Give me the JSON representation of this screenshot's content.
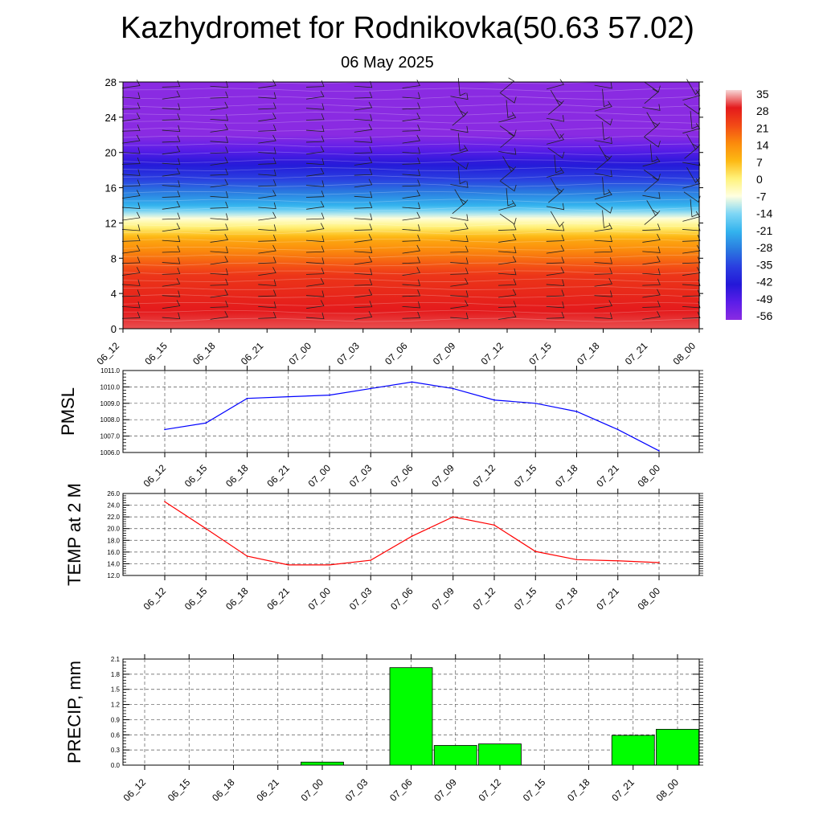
{
  "title": "Kazhydromet for Rodnikovka(50.63 57.02)",
  "subtitle": "06 May 2025",
  "time_labels": [
    "06_12",
    "06_15",
    "06_18",
    "06_21",
    "07_00",
    "07_03",
    "07_06",
    "07_09",
    "07_12",
    "07_15",
    "07_18",
    "07_21",
    "08_00"
  ],
  "chart_data": [
    {
      "type": "heatmap",
      "y_ticks": [
        0,
        4,
        8,
        12,
        16,
        20,
        24,
        28
      ],
      "ylim": [
        0,
        28
      ],
      "colorbar_labels": [
        "35",
        "28",
        "21",
        "14",
        "7",
        "0",
        "-7",
        "-14",
        "-21",
        "-28",
        "-35",
        "-42",
        "-49",
        "-56"
      ],
      "colorbar_colors": [
        "#f7d7d7",
        "#e41a1c",
        "#f24a16",
        "#fb8a0c",
        "#fdb913",
        "#fff27a",
        "#ffffe0",
        "#7ed6f5",
        "#33b3ee",
        "#2a7be0",
        "#2a3ee0",
        "#2418d8",
        "#5b1de8",
        "#8a2be2"
      ],
      "temperature_profile": [
        {
          "height": 0,
          "value": 30
        },
        {
          "height": 6,
          "value": 24
        },
        {
          "height": 10,
          "value": 10
        },
        {
          "height": 12.6,
          "value": -7
        },
        {
          "height": 14,
          "value": -21
        },
        {
          "height": 17,
          "value": -35
        },
        {
          "height": 22,
          "value": -56
        },
        {
          "height": 28,
          "value": -60
        }
      ],
      "wind_barbs": true
    },
    {
      "type": "line",
      "ylabel": "PMSL",
      "y_ticks": [
        "1006.0",
        "1007.0",
        "1008.0",
        "1009.0",
        "1010.0",
        "1011.0"
      ],
      "ylim": [
        1006,
        1011
      ],
      "color": "#0000ff",
      "values": [
        1007.4,
        1007.8,
        1009.3,
        1009.4,
        1009.5,
        1009.9,
        1010.3,
        1009.9,
        1009.2,
        1009.0,
        1008.5,
        1007.4,
        1006.1
      ]
    },
    {
      "type": "line",
      "ylabel": "TEMP at 2 M",
      "y_ticks": [
        "12.0",
        "14.0",
        "16.0",
        "18.0",
        "20.0",
        "22.0",
        "24.0",
        "26.0"
      ],
      "ylim": [
        12,
        26
      ],
      "color": "#ff0000",
      "values": [
        24.6,
        20.0,
        15.3,
        13.8,
        13.8,
        14.6,
        18.7,
        22.0,
        20.6,
        16.1,
        14.7,
        14.5,
        14.2
      ]
    },
    {
      "type": "bar",
      "ylabel": "PRECIP, mm",
      "y_ticks": [
        "0.0",
        "0.3",
        "0.6",
        "0.9",
        "1.2",
        "1.5",
        "1.8",
        "2.1"
      ],
      "ylim": [
        0,
        2.1
      ],
      "color": "#00ff00",
      "values": [
        0,
        0,
        0,
        0,
        0.06,
        0,
        1.93,
        0.39,
        0.42,
        0,
        0,
        0.59,
        0.71
      ]
    }
  ]
}
